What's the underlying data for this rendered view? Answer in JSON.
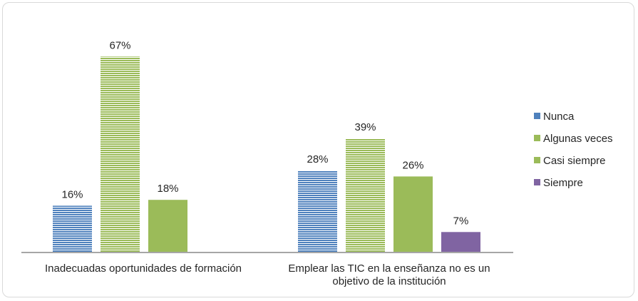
{
  "chart_data": {
    "type": "bar",
    "categories": [
      [
        "Inadecuadas oportunidades de formación"
      ],
      [
        "Emplear las TIC en la enseñanza no es un",
        "objetivo de la institución"
      ]
    ],
    "series": [
      {
        "name": "Nunca",
        "values": [
          16,
          28
        ],
        "labels": [
          "16%",
          "28%"
        ],
        "color": "#4f81bd",
        "pattern": "hlines"
      },
      {
        "name": "Algunas veces",
        "values": [
          67,
          39
        ],
        "labels": [
          "67%",
          "39%"
        ],
        "color": "#9bbb59",
        "pattern": "hlines"
      },
      {
        "name": "Casi siempre",
        "values": [
          18,
          26
        ],
        "labels": [
          "18%",
          "26%"
        ],
        "color": "#9bbb59",
        "pattern": "solid"
      },
      {
        "name": "Siempre",
        "values": [
          null,
          7
        ],
        "labels": [
          null,
          "7%"
        ],
        "color": "#8064a2",
        "pattern": "solid"
      }
    ],
    "ylim": [
      0,
      100
    ],
    "grid": false,
    "legend_position": "right"
  }
}
